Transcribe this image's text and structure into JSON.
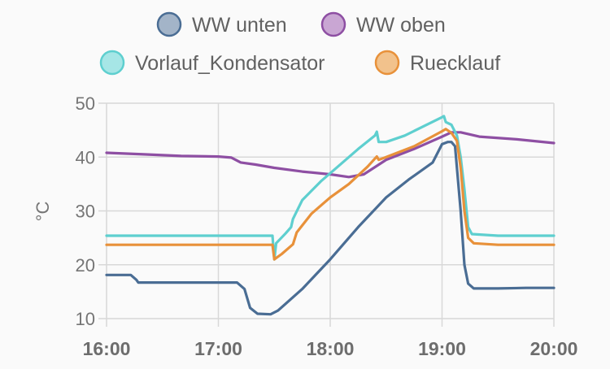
{
  "chart_data": {
    "type": "line",
    "xlabel": "",
    "ylabel": "°C",
    "ylim": [
      10,
      50
    ],
    "xlim": [
      "16:00",
      "20:00"
    ],
    "yticks": [
      10,
      20,
      30,
      40,
      50
    ],
    "xticks": [
      "16:00",
      "17:00",
      "18:00",
      "19:00",
      "20:00"
    ],
    "grid": true,
    "legend_position": "top",
    "series": [
      {
        "name": "WW unten",
        "color": "#4a6d94",
        "fill": "#a3b4c8",
        "points": [
          [
            "16:00",
            18.1
          ],
          [
            "16:13",
            18.1
          ],
          [
            "16:16",
            17.2
          ],
          [
            "16:17",
            16.7
          ],
          [
            "17:00",
            16.7
          ],
          [
            "17:10",
            16.7
          ],
          [
            "17:14",
            15.5
          ],
          [
            "17:17",
            12.0
          ],
          [
            "17:21",
            10.9
          ],
          [
            "17:28",
            10.8
          ],
          [
            "17:32",
            11.5
          ],
          [
            "17:45",
            15.5
          ],
          [
            "18:00",
            21.0
          ],
          [
            "18:15",
            27.0
          ],
          [
            "18:30",
            32.5
          ],
          [
            "18:42",
            35.8
          ],
          [
            "18:55",
            39.0
          ],
          [
            "19:00",
            42.4
          ],
          [
            "19:03",
            42.8
          ],
          [
            "19:05",
            42.8
          ],
          [
            "19:07",
            42.0
          ],
          [
            "19:10",
            30.0
          ],
          [
            "19:12",
            20.0
          ],
          [
            "19:14",
            16.5
          ],
          [
            "19:17",
            15.6
          ],
          [
            "19:30",
            15.6
          ],
          [
            "19:45",
            15.7
          ],
          [
            "20:00",
            15.7
          ]
        ]
      },
      {
        "name": "WW oben",
        "color": "#8e4fa3",
        "fill": "#c9a6d3",
        "points": [
          [
            "16:00",
            40.8
          ],
          [
            "16:20",
            40.5
          ],
          [
            "16:40",
            40.2
          ],
          [
            "17:00",
            40.1
          ],
          [
            "17:07",
            39.9
          ],
          [
            "17:12",
            39.0
          ],
          [
            "17:20",
            38.6
          ],
          [
            "17:30",
            38.0
          ],
          [
            "17:45",
            37.3
          ],
          [
            "18:00",
            36.8
          ],
          [
            "18:10",
            36.3
          ],
          [
            "18:18",
            36.8
          ],
          [
            "18:30",
            39.5
          ],
          [
            "18:45",
            41.5
          ],
          [
            "19:00",
            43.8
          ],
          [
            "19:05",
            44.6
          ],
          [
            "19:10",
            44.6
          ],
          [
            "19:15",
            44.2
          ],
          [
            "19:20",
            43.8
          ],
          [
            "19:40",
            43.3
          ],
          [
            "20:00",
            42.6
          ]
        ]
      },
      {
        "name": "Vorlauf_Kondensator",
        "color": "#5ecfcf",
        "fill": "#a6e6e6",
        "points": [
          [
            "16:00",
            25.4
          ],
          [
            "17:00",
            25.4
          ],
          [
            "17:29",
            25.4
          ],
          [
            "17:30",
            21.0
          ],
          [
            "17:31",
            24.0
          ],
          [
            "17:36",
            25.8
          ],
          [
            "17:39",
            27.0
          ],
          [
            "17:40",
            28.5
          ],
          [
            "17:45",
            32.0
          ],
          [
            "17:55",
            35.5
          ],
          [
            "18:05",
            38.5
          ],
          [
            "18:15",
            41.5
          ],
          [
            "18:24",
            44.0
          ],
          [
            "18:25",
            44.7
          ],
          [
            "18:26",
            42.8
          ],
          [
            "18:30",
            42.8
          ],
          [
            "18:40",
            44.0
          ],
          [
            "19:00",
            47.4
          ],
          [
            "19:01",
            47.6
          ],
          [
            "19:02",
            46.5
          ],
          [
            "19:05",
            46.0
          ],
          [
            "19:08",
            44.0
          ],
          [
            "19:10",
            40.0
          ],
          [
            "19:12",
            34.0
          ],
          [
            "19:14",
            27.0
          ],
          [
            "19:16",
            25.7
          ],
          [
            "19:30",
            25.4
          ],
          [
            "20:00",
            25.4
          ]
        ]
      },
      {
        "name": "Ruecklauf",
        "color": "#e8913a",
        "fill": "#f2c28c",
        "points": [
          [
            "16:00",
            23.7
          ],
          [
            "17:00",
            23.7
          ],
          [
            "17:29",
            23.7
          ],
          [
            "17:30",
            21.0
          ],
          [
            "17:34",
            22.0
          ],
          [
            "17:40",
            23.8
          ],
          [
            "17:42",
            26.0
          ],
          [
            "17:50",
            29.5
          ],
          [
            "18:00",
            32.5
          ],
          [
            "18:10",
            35.0
          ],
          [
            "18:20",
            38.2
          ],
          [
            "18:25",
            40.1
          ],
          [
            "18:26",
            39.5
          ],
          [
            "18:30",
            40.0
          ],
          [
            "18:45",
            42.0
          ],
          [
            "19:00",
            44.8
          ],
          [
            "19:02",
            45.2
          ],
          [
            "19:05",
            44.5
          ],
          [
            "19:08",
            43.0
          ],
          [
            "19:10",
            38.0
          ],
          [
            "19:12",
            30.0
          ],
          [
            "19:14",
            25.0
          ],
          [
            "19:17",
            24.0
          ],
          [
            "19:30",
            23.7
          ],
          [
            "20:00",
            23.7
          ]
        ]
      }
    ]
  }
}
